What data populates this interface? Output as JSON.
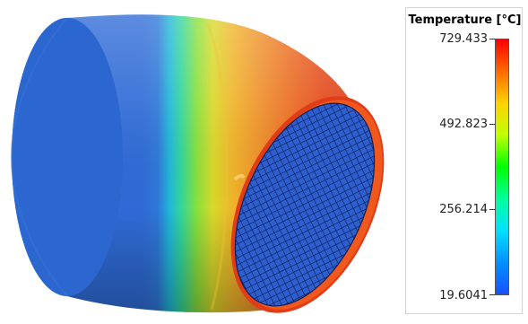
{
  "legend": {
    "title": "Temperature [°C]",
    "max": "729.433",
    "tick_high": "492.823",
    "tick_low": "256.214",
    "min": "19.6041",
    "colors": [
      "#ff0000",
      "#ff6a00",
      "#ffd200",
      "#c0ff00",
      "#00ff00",
      "#00ff9c",
      "#00e0ff",
      "#0090ff",
      "#1a50ff"
    ]
  }
}
